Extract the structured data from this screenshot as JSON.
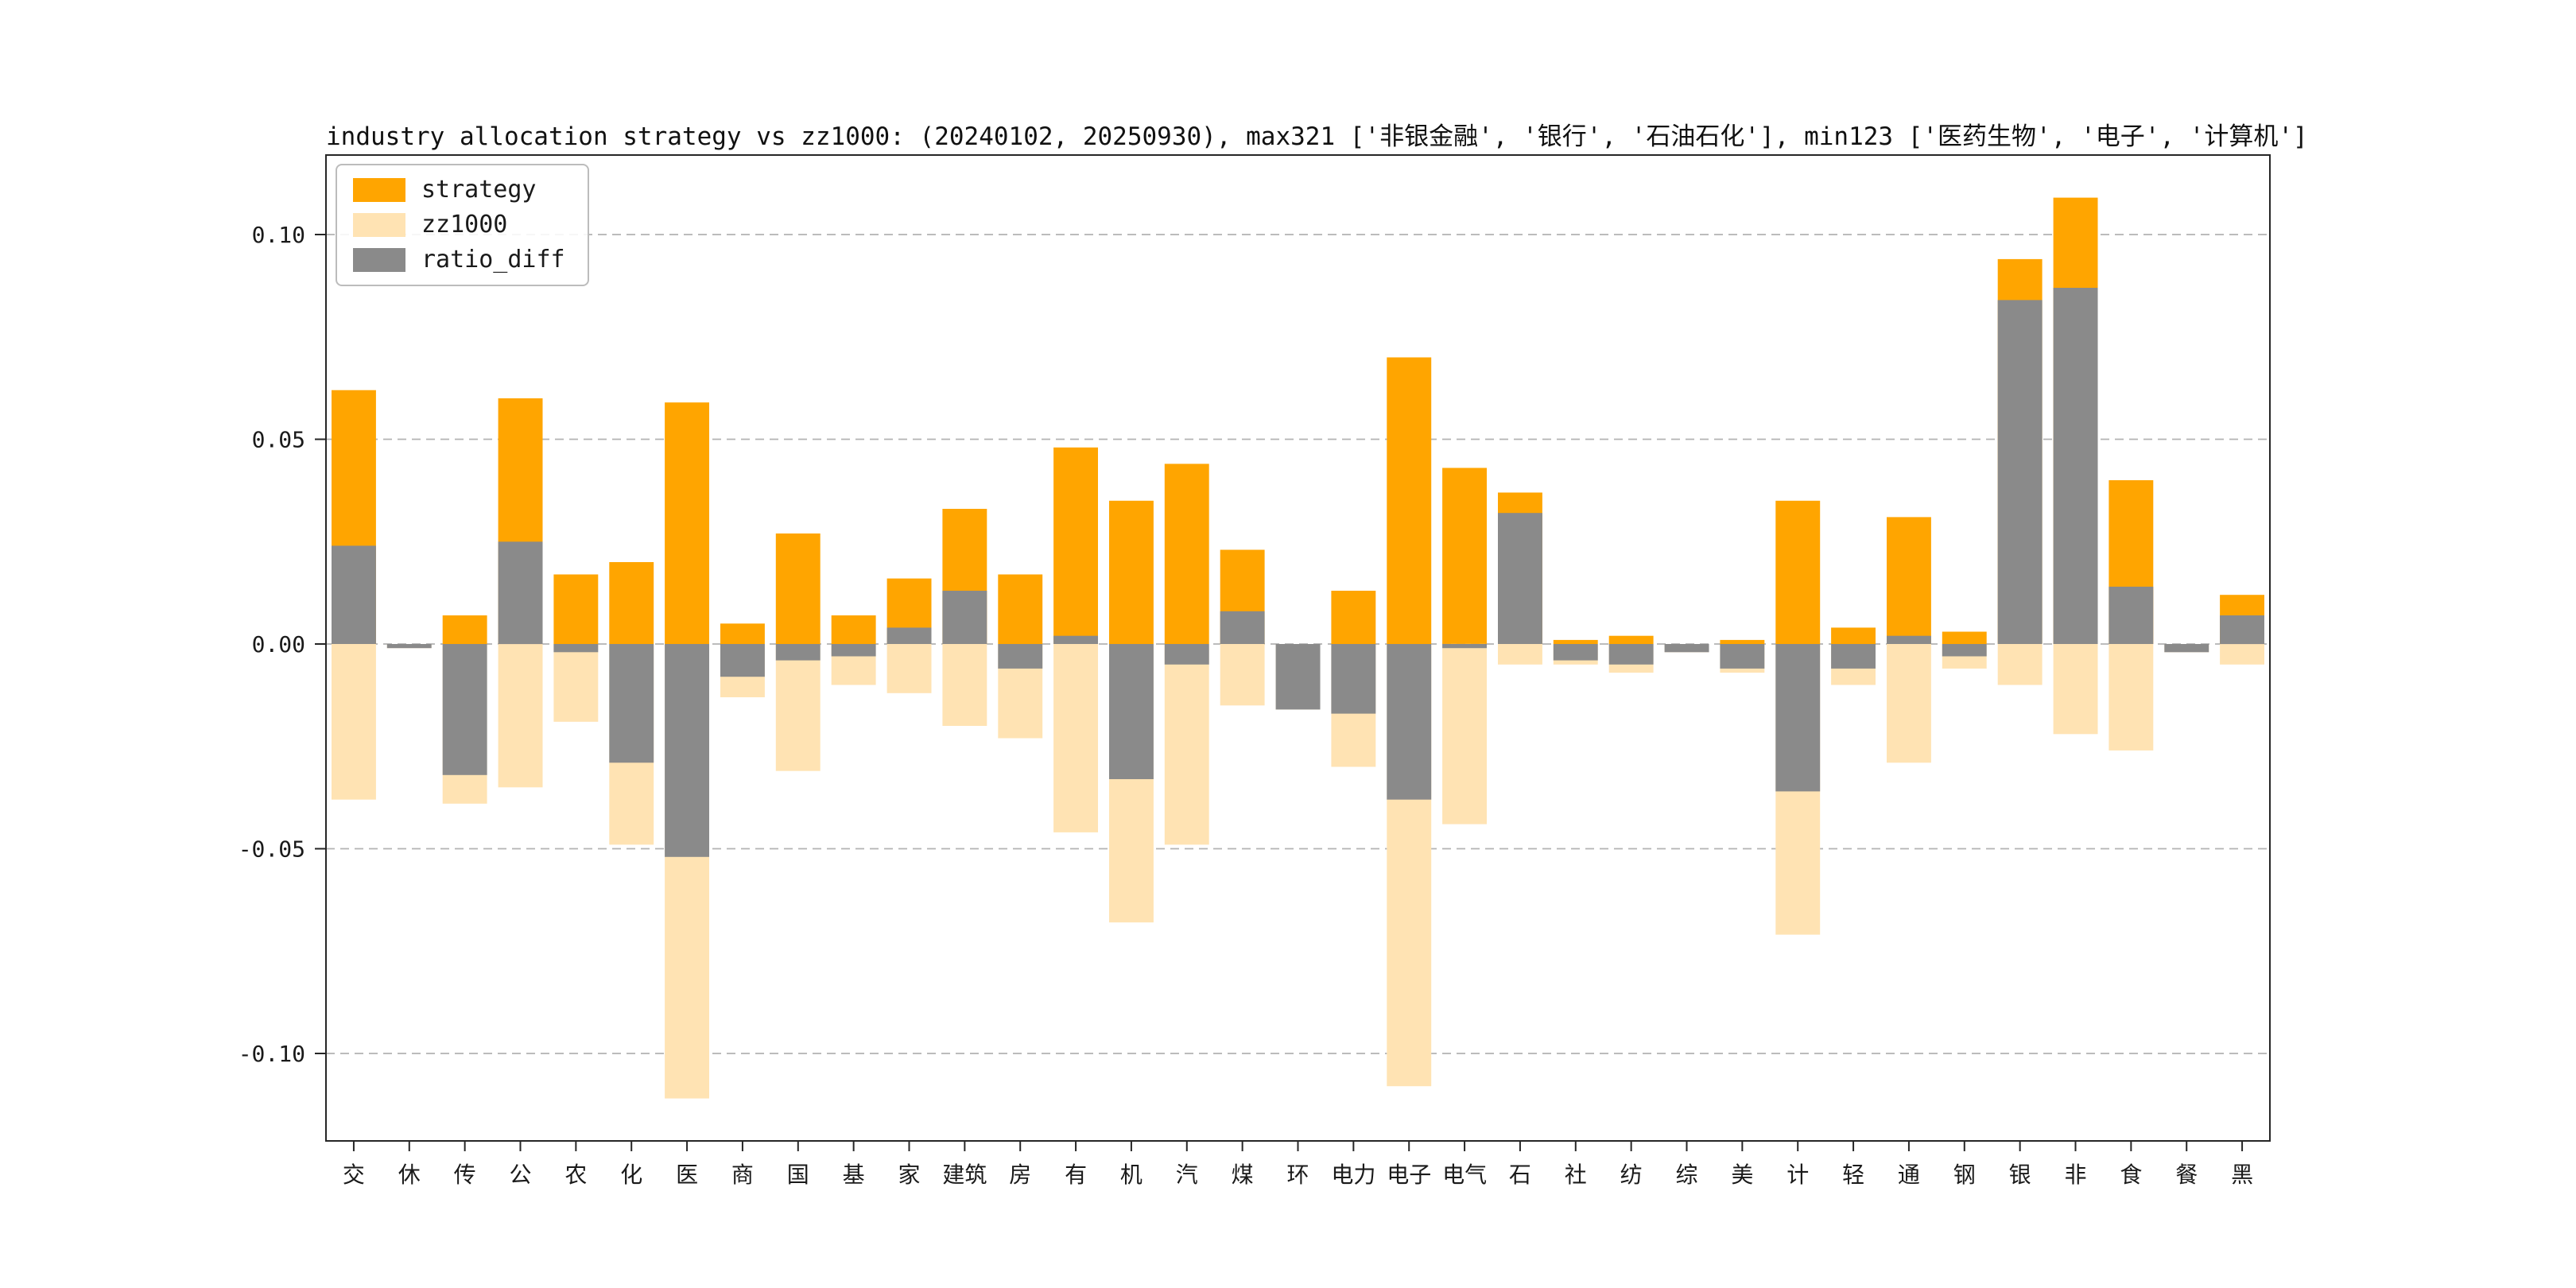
{
  "title": "industry allocation strategy vs zz1000: (20240102, 20250930), max321 ['非银金融', '银行', '石油石化'], min123 ['医药生物', '电子', '计算机']",
  "legend": [
    {
      "label": "strategy",
      "color": "#ffa500"
    },
    {
      "label": "zz1000",
      "color": "#ffe3b3"
    },
    {
      "label": "ratio_diff",
      "color": "#8a8a8a"
    }
  ],
  "colors": {
    "strategy": "#ffa500",
    "zz1000": "#ffe3b3",
    "ratio_diff": "#8a8a8a",
    "grid": "#b3b3b3",
    "spine": "#262626",
    "background": "#ffffff"
  },
  "chart_data": {
    "type": "bar",
    "title": "industry allocation strategy vs zz1000: (20240102, 20250930), max321 ['非银金融', '银行', '石油石化'], min123 ['医药生物', '电子', '计算机']",
    "xlabel": "",
    "ylabel": "",
    "categories": [
      "交",
      "休",
      "传",
      "公",
      "农",
      "化",
      "医",
      "商",
      "国",
      "基",
      "家",
      "建筑",
      "房",
      "有",
      "机",
      "汽",
      "煤",
      "环",
      "电力",
      "电子",
      "电气",
      "石",
      "社",
      "纺",
      "综",
      "美",
      "计",
      "轻",
      "通",
      "钢",
      "银",
      "非",
      "食",
      "餐",
      "黑"
    ],
    "series": [
      {
        "name": "strategy",
        "color": "#ffa500",
        "values": [
          0.062,
          0.0,
          0.007,
          0.06,
          0.017,
          0.02,
          0.059,
          0.005,
          0.027,
          0.007,
          0.016,
          0.033,
          0.017,
          0.048,
          0.035,
          0.044,
          0.023,
          0.0,
          0.013,
          0.07,
          0.043,
          0.037,
          0.001,
          0.002,
          0.0,
          0.001,
          0.035,
          0.004,
          0.031,
          0.003,
          0.094,
          0.109,
          0.04,
          0.0,
          0.012
        ]
      },
      {
        "name": "zz1000",
        "color": "#ffe3b3",
        "values": [
          -0.038,
          -0.001,
          -0.039,
          -0.035,
          -0.019,
          -0.049,
          -0.111,
          -0.013,
          -0.031,
          -0.01,
          -0.012,
          -0.02,
          -0.023,
          -0.046,
          -0.068,
          -0.049,
          -0.015,
          -0.016,
          -0.03,
          -0.108,
          -0.044,
          -0.005,
          -0.005,
          -0.007,
          -0.002,
          -0.007,
          -0.071,
          -0.01,
          -0.029,
          -0.006,
          -0.01,
          -0.022,
          -0.026,
          -0.002,
          -0.005
        ]
      },
      {
        "name": "ratio_diff",
        "color": "#8a8a8a",
        "values": [
          0.024,
          -0.001,
          -0.032,
          0.025,
          -0.002,
          -0.029,
          -0.052,
          -0.008,
          -0.004,
          -0.003,
          0.004,
          0.013,
          -0.006,
          0.002,
          -0.033,
          -0.005,
          0.008,
          -0.016,
          -0.017,
          -0.038,
          -0.001,
          0.032,
          -0.004,
          -0.005,
          -0.002,
          -0.006,
          -0.036,
          -0.006,
          0.002,
          -0.003,
          0.084,
          0.087,
          0.014,
          -0.002,
          0.007
        ]
      }
    ],
    "yticks": [
      0.1,
      0.05,
      0.0,
      -0.05,
      -0.1
    ],
    "ytick_labels": [
      "0.10",
      "0.05",
      "0.00",
      "-0.05",
      "-0.10"
    ],
    "ylim": [
      -0.121,
      0.119
    ],
    "grid": true,
    "grid_style": "dashed horizontal",
    "legend_position": "upper left",
    "legend_entries": [
      "strategy",
      "zz1000",
      "ratio_diff"
    ]
  }
}
